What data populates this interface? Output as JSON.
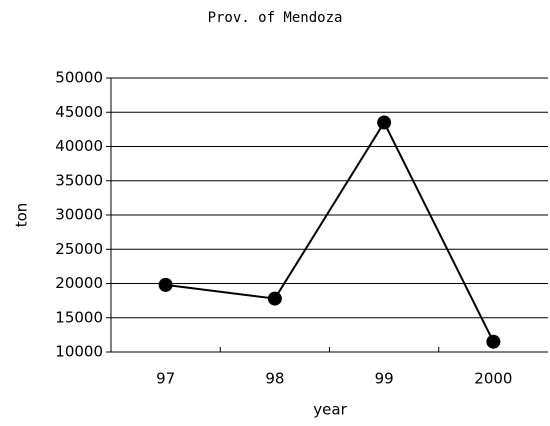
{
  "chart_data": {
    "type": "line",
    "title": "Prov. of Mendoza",
    "x_label": "year",
    "y_label": "ton",
    "categories": [
      "97",
      "98",
      "99",
      "2000"
    ],
    "series": [
      {
        "name": "Mendoza",
        "color": "#000000",
        "values": [
          19800,
          17800,
          43500,
          11500
        ]
      }
    ],
    "ylim": [
      10000,
      50000
    ],
    "yticks": [
      10000,
      15000,
      20000,
      25000,
      30000,
      35000,
      40000,
      45000,
      50000
    ],
    "grid": true
  }
}
